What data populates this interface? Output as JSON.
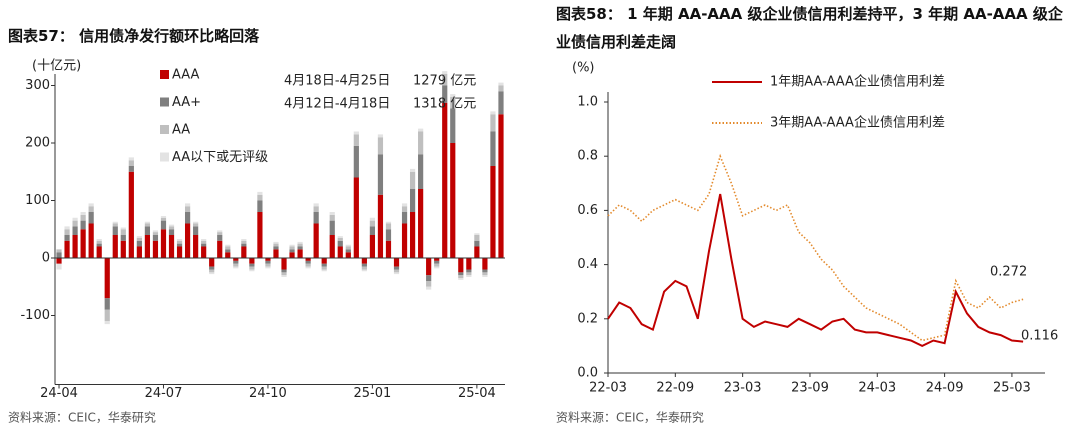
{
  "chart_data": [
    {
      "type": "stacked_bar",
      "title": "图表57： 信用债净发行额环比略回落",
      "y_label": "(十亿元)",
      "source": "资料来源：CEIC，华泰研究",
      "categories": [
        "24-04",
        null,
        null,
        null,
        null,
        null,
        null,
        null,
        null,
        null,
        null,
        null,
        null,
        "24-07",
        null,
        null,
        null,
        null,
        null,
        null,
        null,
        null,
        null,
        null,
        null,
        null,
        "24-10",
        null,
        null,
        null,
        null,
        null,
        null,
        null,
        null,
        null,
        null,
        null,
        null,
        "25-01",
        null,
        null,
        null,
        null,
        null,
        null,
        null,
        null,
        null,
        null,
        null,
        null,
        "25-04",
        null,
        null,
        null
      ],
      "series": [
        {
          "name": "AAA",
          "color": "#c00000",
          "values": [
            -10,
            30,
            40,
            50,
            60,
            20,
            -70,
            40,
            30,
            150,
            20,
            40,
            30,
            50,
            40,
            20,
            60,
            40,
            20,
            -15,
            30,
            10,
            -5,
            20,
            -10,
            80,
            -5,
            15,
            -20,
            10,
            15,
            -5,
            60,
            -10,
            40,
            20,
            10,
            140,
            -10,
            40,
            110,
            30,
            -15,
            60,
            80,
            120,
            -30,
            -5,
            270,
            200,
            -25,
            -20,
            20,
            -20,
            160,
            250
          ]
        },
        {
          "name": "AA+",
          "color": "#7f7f7f",
          "values": [
            10,
            10,
            15,
            15,
            20,
            5,
            -20,
            15,
            10,
            10,
            10,
            15,
            10,
            15,
            10,
            5,
            20,
            15,
            5,
            -5,
            10,
            5,
            -5,
            5,
            -5,
            20,
            -5,
            5,
            -5,
            5,
            5,
            -5,
            20,
            -5,
            25,
            10,
            5,
            55,
            -5,
            15,
            70,
            20,
            -5,
            20,
            40,
            60,
            -10,
            -5,
            30,
            60,
            -5,
            -5,
            10,
            -5,
            60,
            40
          ]
        },
        {
          "name": "AA",
          "color": "#bfbfbf",
          "values": [
            5,
            10,
            10,
            10,
            10,
            5,
            -20,
            5,
            10,
            10,
            5,
            5,
            5,
            5,
            5,
            5,
            10,
            5,
            5,
            -5,
            5,
            5,
            -5,
            5,
            -5,
            10,
            -5,
            5,
            -5,
            5,
            5,
            -5,
            10,
            -5,
            10,
            5,
            5,
            20,
            -5,
            10,
            30,
            10,
            -5,
            10,
            30,
            40,
            -10,
            -5,
            20,
            20,
            -5,
            -5,
            10,
            -5,
            30,
            10
          ]
        },
        {
          "name": "AA以下或无评级",
          "color": "#e3e3e3",
          "values": [
            -10,
            5,
            5,
            5,
            5,
            3,
            -5,
            3,
            3,
            5,
            3,
            3,
            3,
            3,
            3,
            3,
            5,
            3,
            3,
            -3,
            3,
            3,
            -3,
            3,
            -3,
            5,
            -3,
            3,
            -3,
            3,
            3,
            -3,
            5,
            -3,
            5,
            3,
            3,
            5,
            -3,
            5,
            5,
            3,
            -3,
            5,
            5,
            5,
            -5,
            -3,
            5,
            5,
            -3,
            -3,
            3,
            -3,
            5,
            5
          ]
        }
      ],
      "annotations": [
        {
          "period": "4月18日-4月25日",
          "amount": "1279 亿元"
        },
        {
          "period": "4月12日-4月18日",
          "amount": "1318 亿元"
        }
      ],
      "ylim": [
        -220,
        320
      ],
      "yticks": [
        -100,
        0,
        100,
        200,
        300
      ]
    },
    {
      "type": "line",
      "title": "图表58： 1 年期 AA-AAA 级企业债信用利差持平，3 年期 AA-AAA 级企业债信用利差走阔",
      "y_label": "(%)",
      "source": "资料来源：CEIC，华泰研究",
      "x": [
        "22-03",
        "22-04",
        "22-05",
        "22-06",
        "22-07",
        "22-08",
        "22-09",
        "22-10",
        "22-11",
        "22-12",
        "23-01",
        "23-02",
        "23-03",
        "23-04",
        "23-05",
        "23-06",
        "23-07",
        "23-08",
        "23-09",
        "23-10",
        "23-11",
        "23-12",
        "24-01",
        "24-02",
        "24-03",
        "24-04",
        "24-05",
        "24-06",
        "24-07",
        "24-08",
        "24-09",
        "24-10",
        "24-11",
        "24-12",
        "25-01",
        "25-02",
        "25-03",
        "25-04"
      ],
      "xticks": [
        "22-03",
        "22-09",
        "23-03",
        "23-09",
        "24-03",
        "24-09",
        "25-03"
      ],
      "series": [
        {
          "name": "1年期AA-AAA企业债信用利差",
          "color": "#c00000",
          "line_style": "solid",
          "values": [
            0.2,
            0.26,
            0.24,
            0.18,
            0.16,
            0.3,
            0.34,
            0.32,
            0.2,
            0.45,
            0.66,
            0.42,
            0.2,
            0.17,
            0.19,
            0.18,
            0.17,
            0.2,
            0.18,
            0.16,
            0.19,
            0.2,
            0.16,
            0.15,
            0.15,
            0.14,
            0.13,
            0.12,
            0.1,
            0.12,
            0.11,
            0.3,
            0.22,
            0.17,
            0.15,
            0.14,
            0.12,
            0.116
          ]
        },
        {
          "name": "3年期AA-AAA企业债信用利差",
          "color": "#e38a2c",
          "line_style": "dotted",
          "values": [
            0.58,
            0.62,
            0.6,
            0.56,
            0.6,
            0.62,
            0.64,
            0.62,
            0.6,
            0.66,
            0.8,
            0.7,
            0.58,
            0.6,
            0.62,
            0.6,
            0.62,
            0.52,
            0.48,
            0.42,
            0.38,
            0.32,
            0.28,
            0.24,
            0.22,
            0.2,
            0.18,
            0.15,
            0.12,
            0.13,
            0.14,
            0.34,
            0.26,
            0.24,
            0.28,
            0.24,
            0.26,
            0.272
          ]
        }
      ],
      "annotations": [
        "0.272",
        "0.116"
      ],
      "ylim": [
        0,
        1.0
      ],
      "yticks": [
        {
          "value": 0,
          "label": "0.0"
        },
        0.2,
        0.4,
        0.6,
        0.8,
        {
          "value": 1.0,
          "label": "1.0"
        }
      ]
    }
  ]
}
